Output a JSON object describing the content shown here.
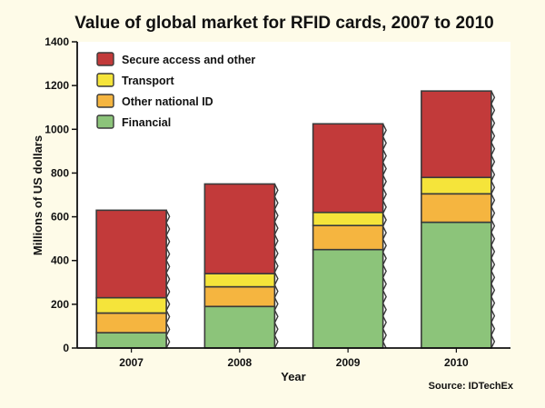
{
  "chart_data": {
    "type": "bar",
    "stacked": true,
    "title": "Value of global market for RFID cards, 2007 to 2010",
    "xlabel": "Year",
    "ylabel": "Millions of US dollars",
    "ylim": [
      0,
      1400
    ],
    "yticks": [
      0,
      200,
      400,
      600,
      800,
      1000,
      1200,
      1400
    ],
    "categories": [
      "2007",
      "2008",
      "2009",
      "2010"
    ],
    "series": [
      {
        "name": "Financial",
        "color": "#8cc47a",
        "values": [
          70,
          190,
          450,
          575
        ]
      },
      {
        "name": "Other national ID",
        "color": "#f5b540",
        "values": [
          90,
          90,
          110,
          130
        ]
      },
      {
        "name": "Transport",
        "color": "#f5e43a",
        "values": [
          70,
          60,
          60,
          75
        ]
      },
      {
        "name": "Secure access and other",
        "color": "#c23a3a",
        "values": [
          400,
          410,
          405,
          395
        ]
      }
    ],
    "legend": {
      "position": "top-left",
      "order": [
        "Secure access and other",
        "Transport",
        "Other national ID",
        "Financial"
      ]
    },
    "grid": false,
    "source": "Source: IDTechEx"
  },
  "style": {
    "background": "#fefbe8",
    "plot_background": "#ffffff",
    "axis_color": "#111111",
    "bar_edge": "#3a3a3a"
  }
}
